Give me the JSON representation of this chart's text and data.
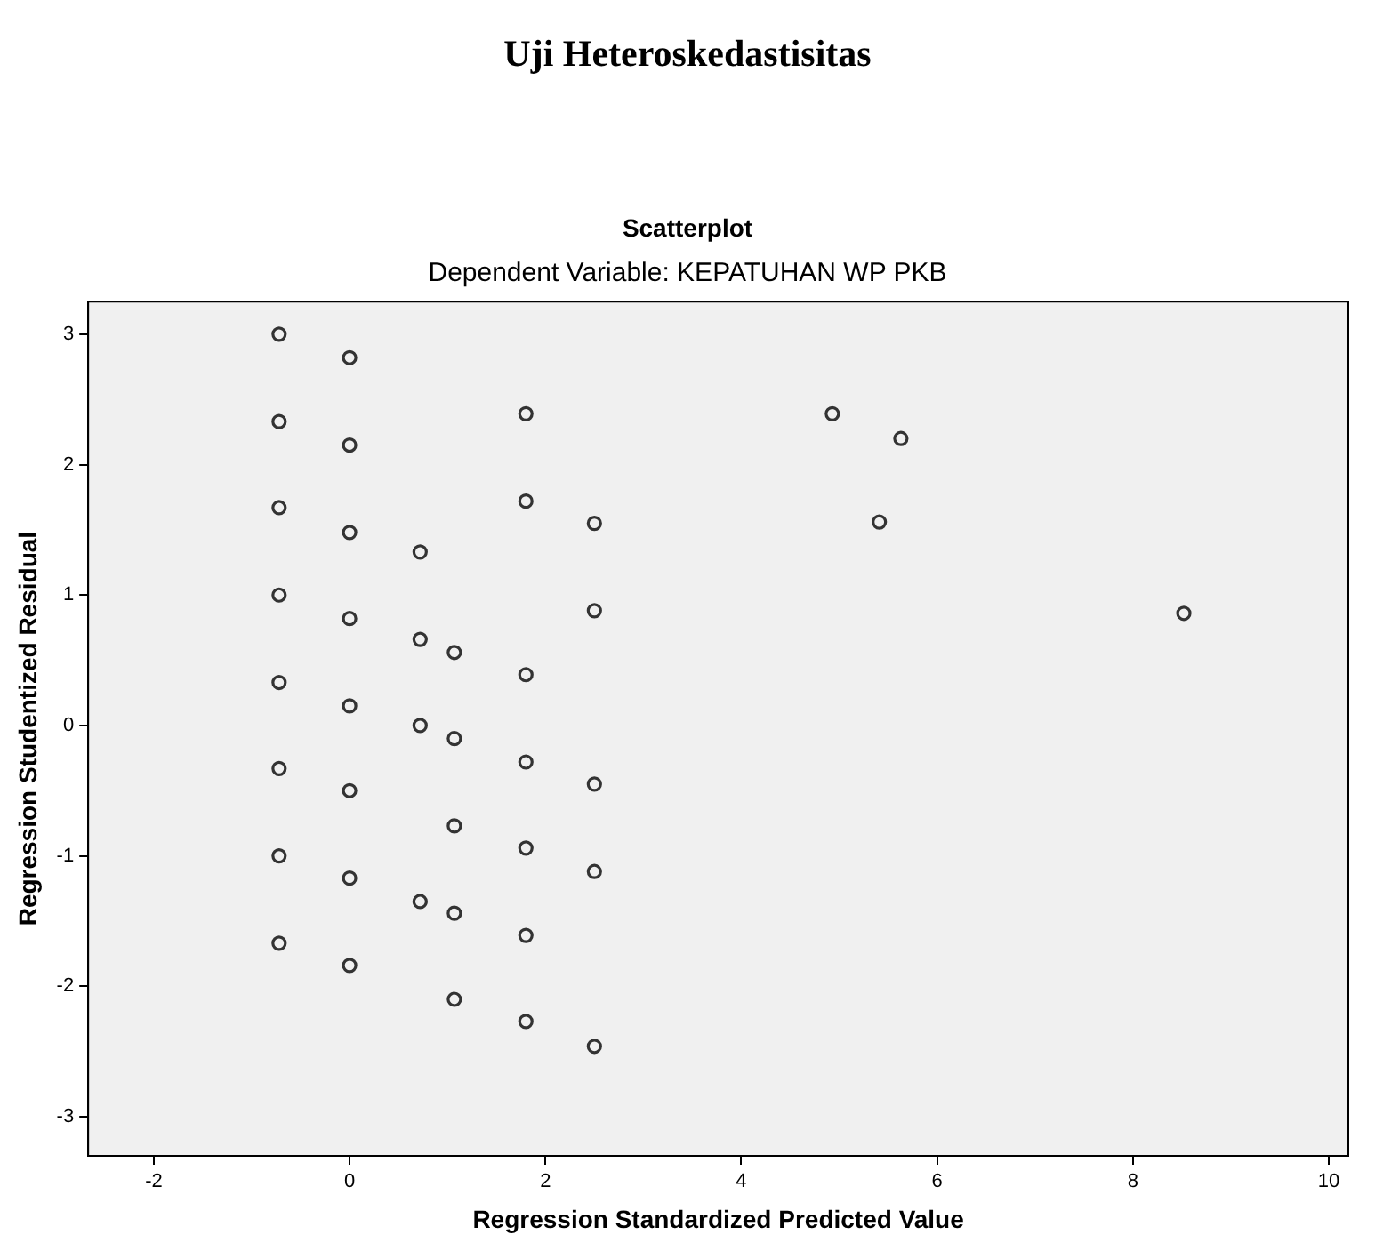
{
  "chart_data": {
    "type": "scatter",
    "title": "Uji Heteroskedastisitas",
    "subtitle": "Scatterplot",
    "annotations": [
      "Dependent Variable: KEPATUHAN WP PKB"
    ],
    "xlabel": "Regression Standardized Predicted Value",
    "ylabel": "Regression Studentized Residual",
    "marker": "circle",
    "grid": false,
    "legend": false,
    "xlim": [
      -2.67,
      10.2
    ],
    "ylim": [
      -3.3,
      3.25
    ],
    "xticks": [
      -2,
      0,
      2,
      4,
      6,
      8,
      10
    ],
    "yticks": [
      -3,
      -2,
      -1,
      0,
      1,
      2,
      3
    ],
    "series": [
      {
        "color": "#333333",
        "x": [
          -0.72,
          -0.72,
          -0.72,
          -0.72,
          -0.72,
          -0.72,
          -0.72,
          -0.72,
          0,
          0,
          0,
          0,
          0,
          0,
          0,
          0,
          0.72,
          0.72,
          0.72,
          0.72,
          1.07,
          1.07,
          1.07,
          1.07,
          1.07,
          1.8,
          1.8,
          1.8,
          1.8,
          1.8,
          1.8,
          1.8,
          2.5,
          2.5,
          2.5,
          2.5,
          2.5,
          4.93,
          5.63,
          5.41,
          8.52
        ],
        "values": [
          3.0,
          2.33,
          1.67,
          1.0,
          0.33,
          -0.33,
          -1.0,
          -1.67,
          2.82,
          2.15,
          1.48,
          0.82,
          0.15,
          -0.5,
          -1.17,
          -1.84,
          1.33,
          0.66,
          0,
          -1.35,
          0.56,
          -0.1,
          -0.77,
          -1.44,
          -2.1,
          2.39,
          1.72,
          0.39,
          -0.28,
          -0.94,
          -1.61,
          -2.27,
          1.55,
          0.88,
          -0.45,
          -1.12,
          -2.46,
          2.39,
          2.2,
          1.56,
          0.86
        ]
      }
    ]
  }
}
